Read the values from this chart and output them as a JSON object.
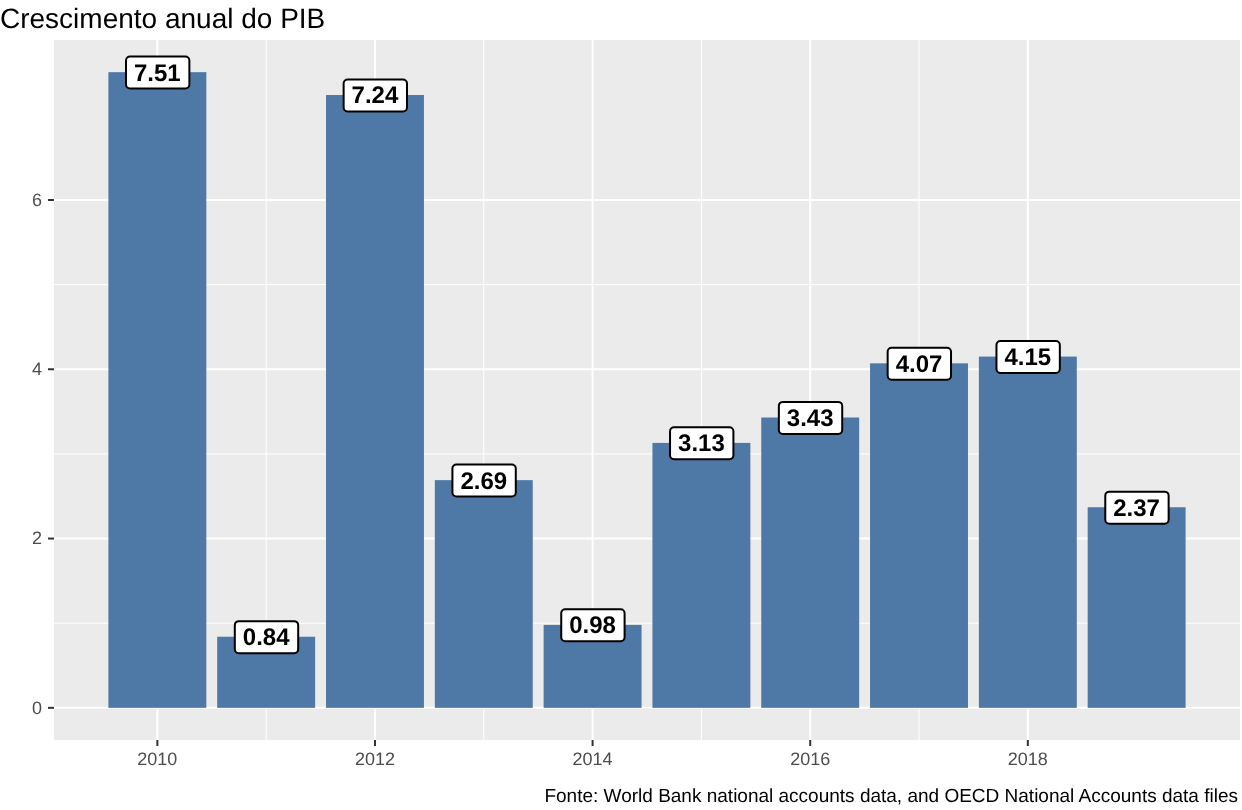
{
  "chart_data": {
    "type": "bar",
    "title": "Crescimento anual do PIB",
    "x": [
      2010,
      2011,
      2012,
      2013,
      2014,
      2015,
      2016,
      2017,
      2018,
      2019
    ],
    "values": [
      7.51,
      0.84,
      7.24,
      2.69,
      0.98,
      3.13,
      3.43,
      4.07,
      4.15,
      2.37
    ],
    "color": "#4e79a7",
    "xlim": [
      2009.05,
      2019.95
    ],
    "xticks": [
      2010,
      2012,
      2014,
      2016,
      2018
    ],
    "ylim": [
      -0.38,
      7.89
    ],
    "yticks": [
      0,
      2,
      4,
      6
    ],
    "grid": true,
    "data_labels": true,
    "annotations": [
      "Fonte: World Bank national accounts data, and OECD National Accounts data files"
    ]
  }
}
